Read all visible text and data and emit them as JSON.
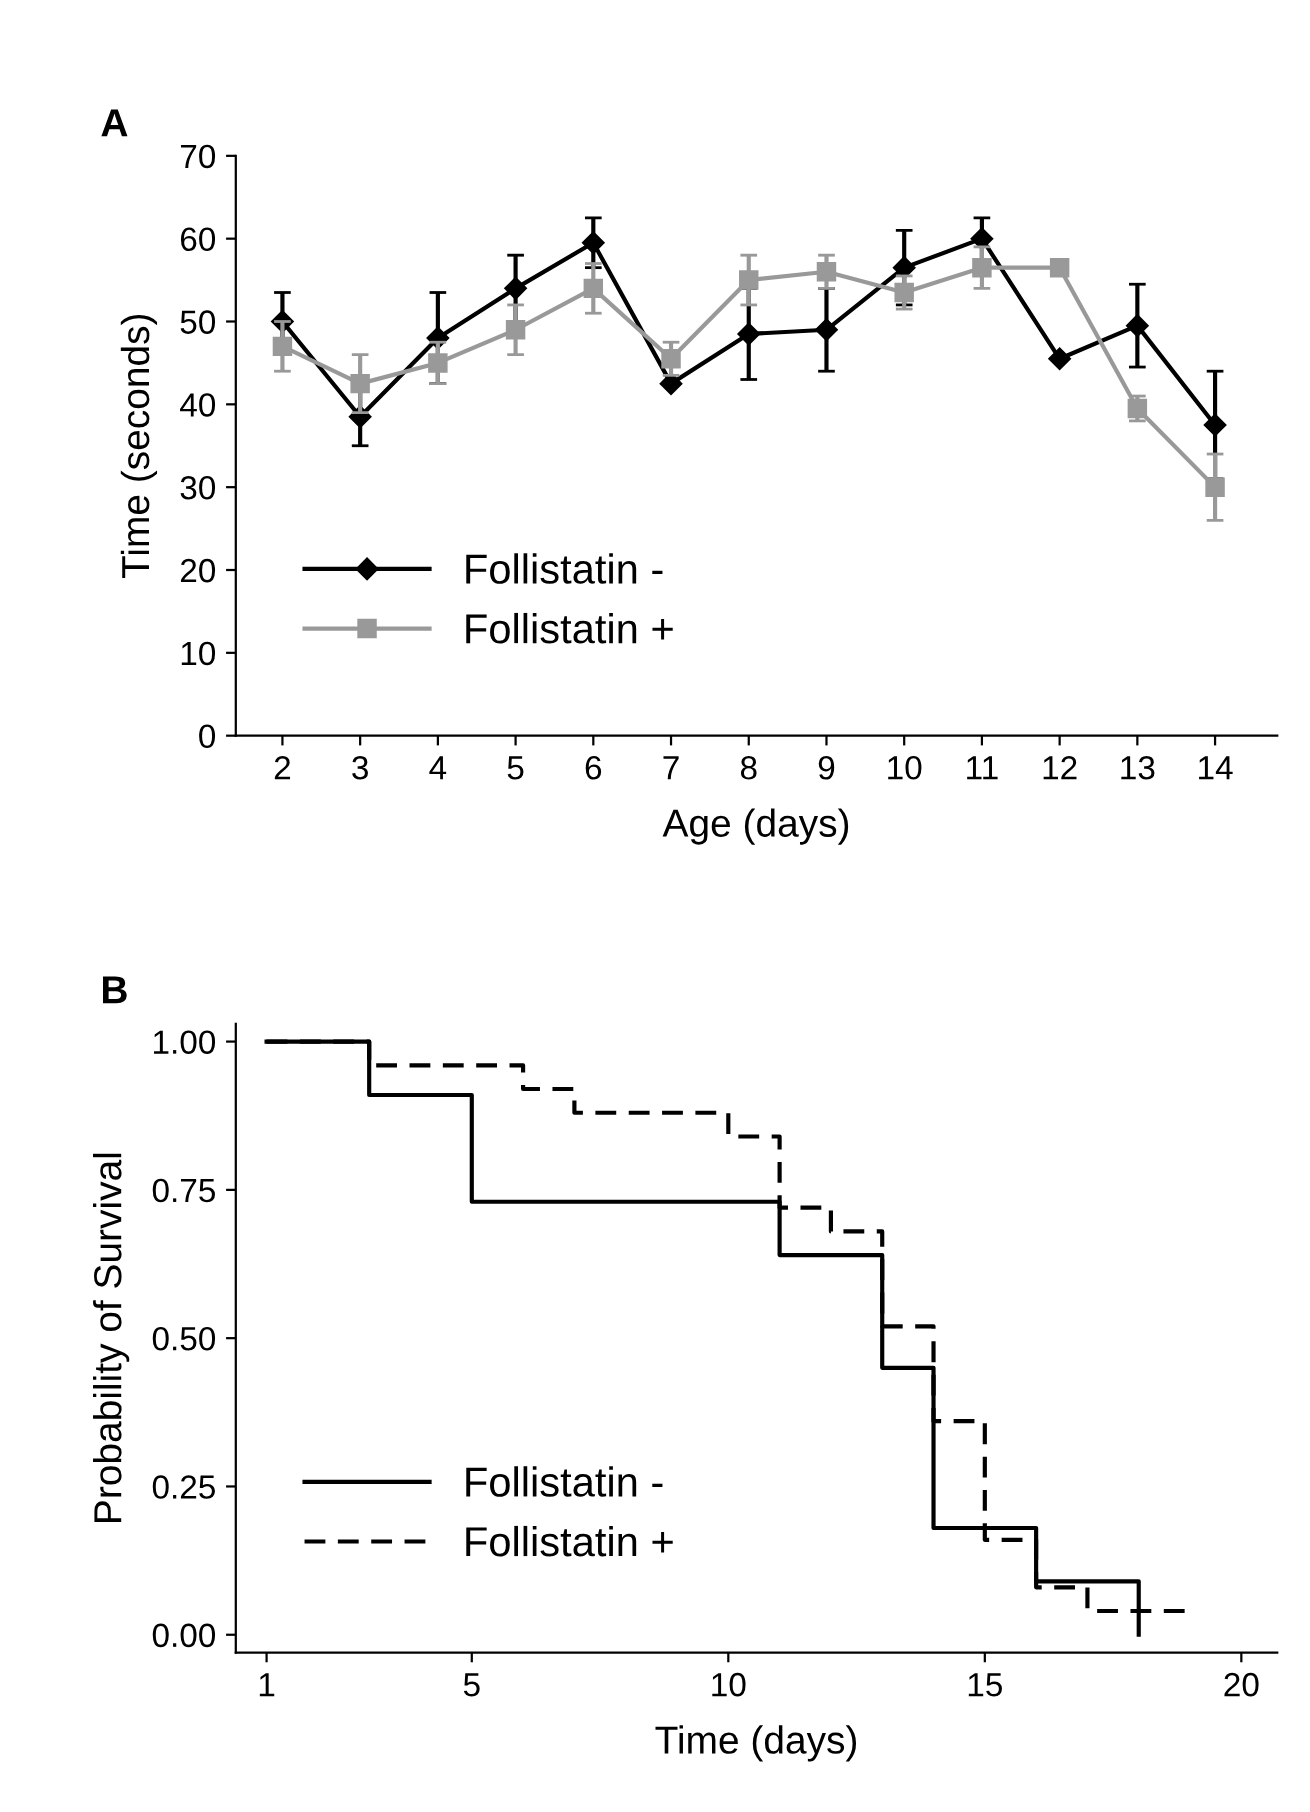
{
  "chart_data": [
    {
      "type": "line",
      "title": "A",
      "xlabel": "Age (days)",
      "ylabel": "Time (seconds)",
      "categories": [
        "2",
        "3",
        "4",
        "5",
        "6",
        "7",
        "8",
        "9",
        "10",
        "11",
        "12",
        "13",
        "14"
      ],
      "ylim": [
        0,
        70
      ],
      "yticks": [
        0,
        10,
        20,
        30,
        40,
        50,
        60,
        70
      ],
      "grid": false,
      "legend": "bottom left",
      "series": [
        {
          "name": "Follistatin -",
          "color": "#000000",
          "marker": "diamond",
          "values": [
            50,
            38.5,
            48,
            54,
            59.5,
            42.5,
            48.5,
            49,
            56.5,
            60,
            45.5,
            49.5,
            37.5
          ],
          "errors": [
            3.5,
            3.5,
            5.5,
            4,
            3,
            null,
            5.5,
            5,
            4.5,
            2.5,
            null,
            5,
            6.5
          ]
        },
        {
          "name": "Follistatin +",
          "color": "#999999",
          "marker": "square",
          "values": [
            47,
            42.5,
            45,
            49,
            54,
            45.5,
            55,
            56,
            53.5,
            56.5,
            56.5,
            39.5,
            30
          ],
          "errors": [
            3,
            3.5,
            2.5,
            3,
            3,
            2,
            3,
            2,
            2,
            2.5,
            null,
            1.5,
            4
          ]
        }
      ]
    },
    {
      "type": "step",
      "title": "B",
      "xlabel": "Time (days)",
      "ylabel": "Probability of Survival",
      "xlim": [
        0.4,
        20.7
      ],
      "xticks": [
        1,
        5,
        10,
        15,
        20
      ],
      "ylim": [
        -0.03,
        1.03
      ],
      "yticks": [
        {
          "value": 0,
          "label": "0.00"
        },
        {
          "value": 0.25,
          "label": "0.25"
        },
        {
          "value": 0.5,
          "label": "0.50"
        },
        {
          "value": 0.75,
          "label": "0.75"
        },
        {
          "value": 1,
          "label": "1.00"
        }
      ],
      "grid": false,
      "legend": "bottom left",
      "series": [
        {
          "name": "Follistatin -",
          "color": "#000000",
          "line_style": "solid",
          "x": [
            1,
            3,
            5,
            11,
            13,
            14,
            16,
            18
          ],
          "values": [
            1,
            0.91,
            0.73,
            0.64,
            0.45,
            0.18,
            0.09,
            0
          ]
        },
        {
          "name": "Follistatin +",
          "color": "#000000",
          "line_style": "dashed",
          "x": [
            1,
            3,
            6,
            7,
            10,
            11,
            12,
            13,
            14,
            15,
            16,
            17,
            19
          ],
          "values": [
            1,
            0.96,
            0.92,
            0.88,
            0.84,
            0.72,
            0.68,
            0.52,
            0.36,
            0.16,
            0.08,
            0.04,
            0.04
          ]
        }
      ]
    }
  ]
}
